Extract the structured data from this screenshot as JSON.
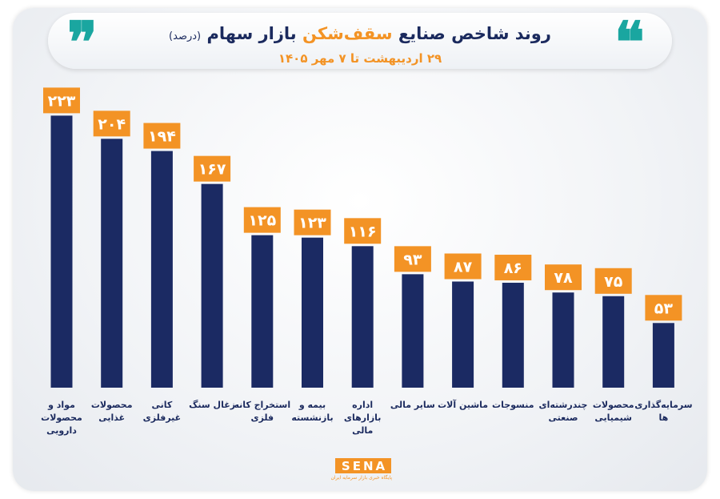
{
  "header": {
    "title_main": "روند شاخص صنایع",
    "title_highlight": "سقف‌شکن",
    "title_rest": "بازار سهام",
    "title_unit": "(درصد)",
    "subtitle": "۲۹ اردیبهشت تا ۷ مهر ۱۴۰۵"
  },
  "logo": {
    "text": "SENA",
    "tagline": "پایگاه خبری بازار سرمایه ایران"
  },
  "colors": {
    "bar": "#1b2a63",
    "label_bg": "#f39325",
    "accent": "#1aa6a0"
  },
  "chart_data": {
    "type": "bar",
    "title": "روند شاخص صنایع سقف‌شکن بازار سهام (درصد)",
    "subtitle": "۲۹ اردیبهشت تا ۷ مهر ۱۴۰۵",
    "xlabel": "",
    "ylabel": "",
    "categories": [
      "مواد و محصولات دارویی",
      "محصولات غذایی",
      "کانی غیرفلزی",
      "زغال سنگ",
      "استخراج کانه فلزی",
      "بیمه و بازنشسته",
      "اداره بازارهای مالی",
      "سایر مالی",
      "ماشین آلات",
      "منسوجات",
      "چندرشته‌ای صنعتی",
      "محصولات شیمیایی",
      "سرمایه‌گذاری ها"
    ],
    "values": [
      223,
      204,
      194,
      167,
      125,
      123,
      116,
      93,
      87,
      86,
      78,
      75,
      53
    ],
    "value_labels": [
      "۲۲۳",
      "۲۰۴",
      "۱۹۴",
      "۱۶۷",
      "۱۲۵",
      "۱۲۳",
      "۱۱۶",
      "۹۳",
      "۸۷",
      "۸۶",
      "۷۸",
      "۷۵",
      "۵۳"
    ],
    "grid": false,
    "legend": "none"
  }
}
